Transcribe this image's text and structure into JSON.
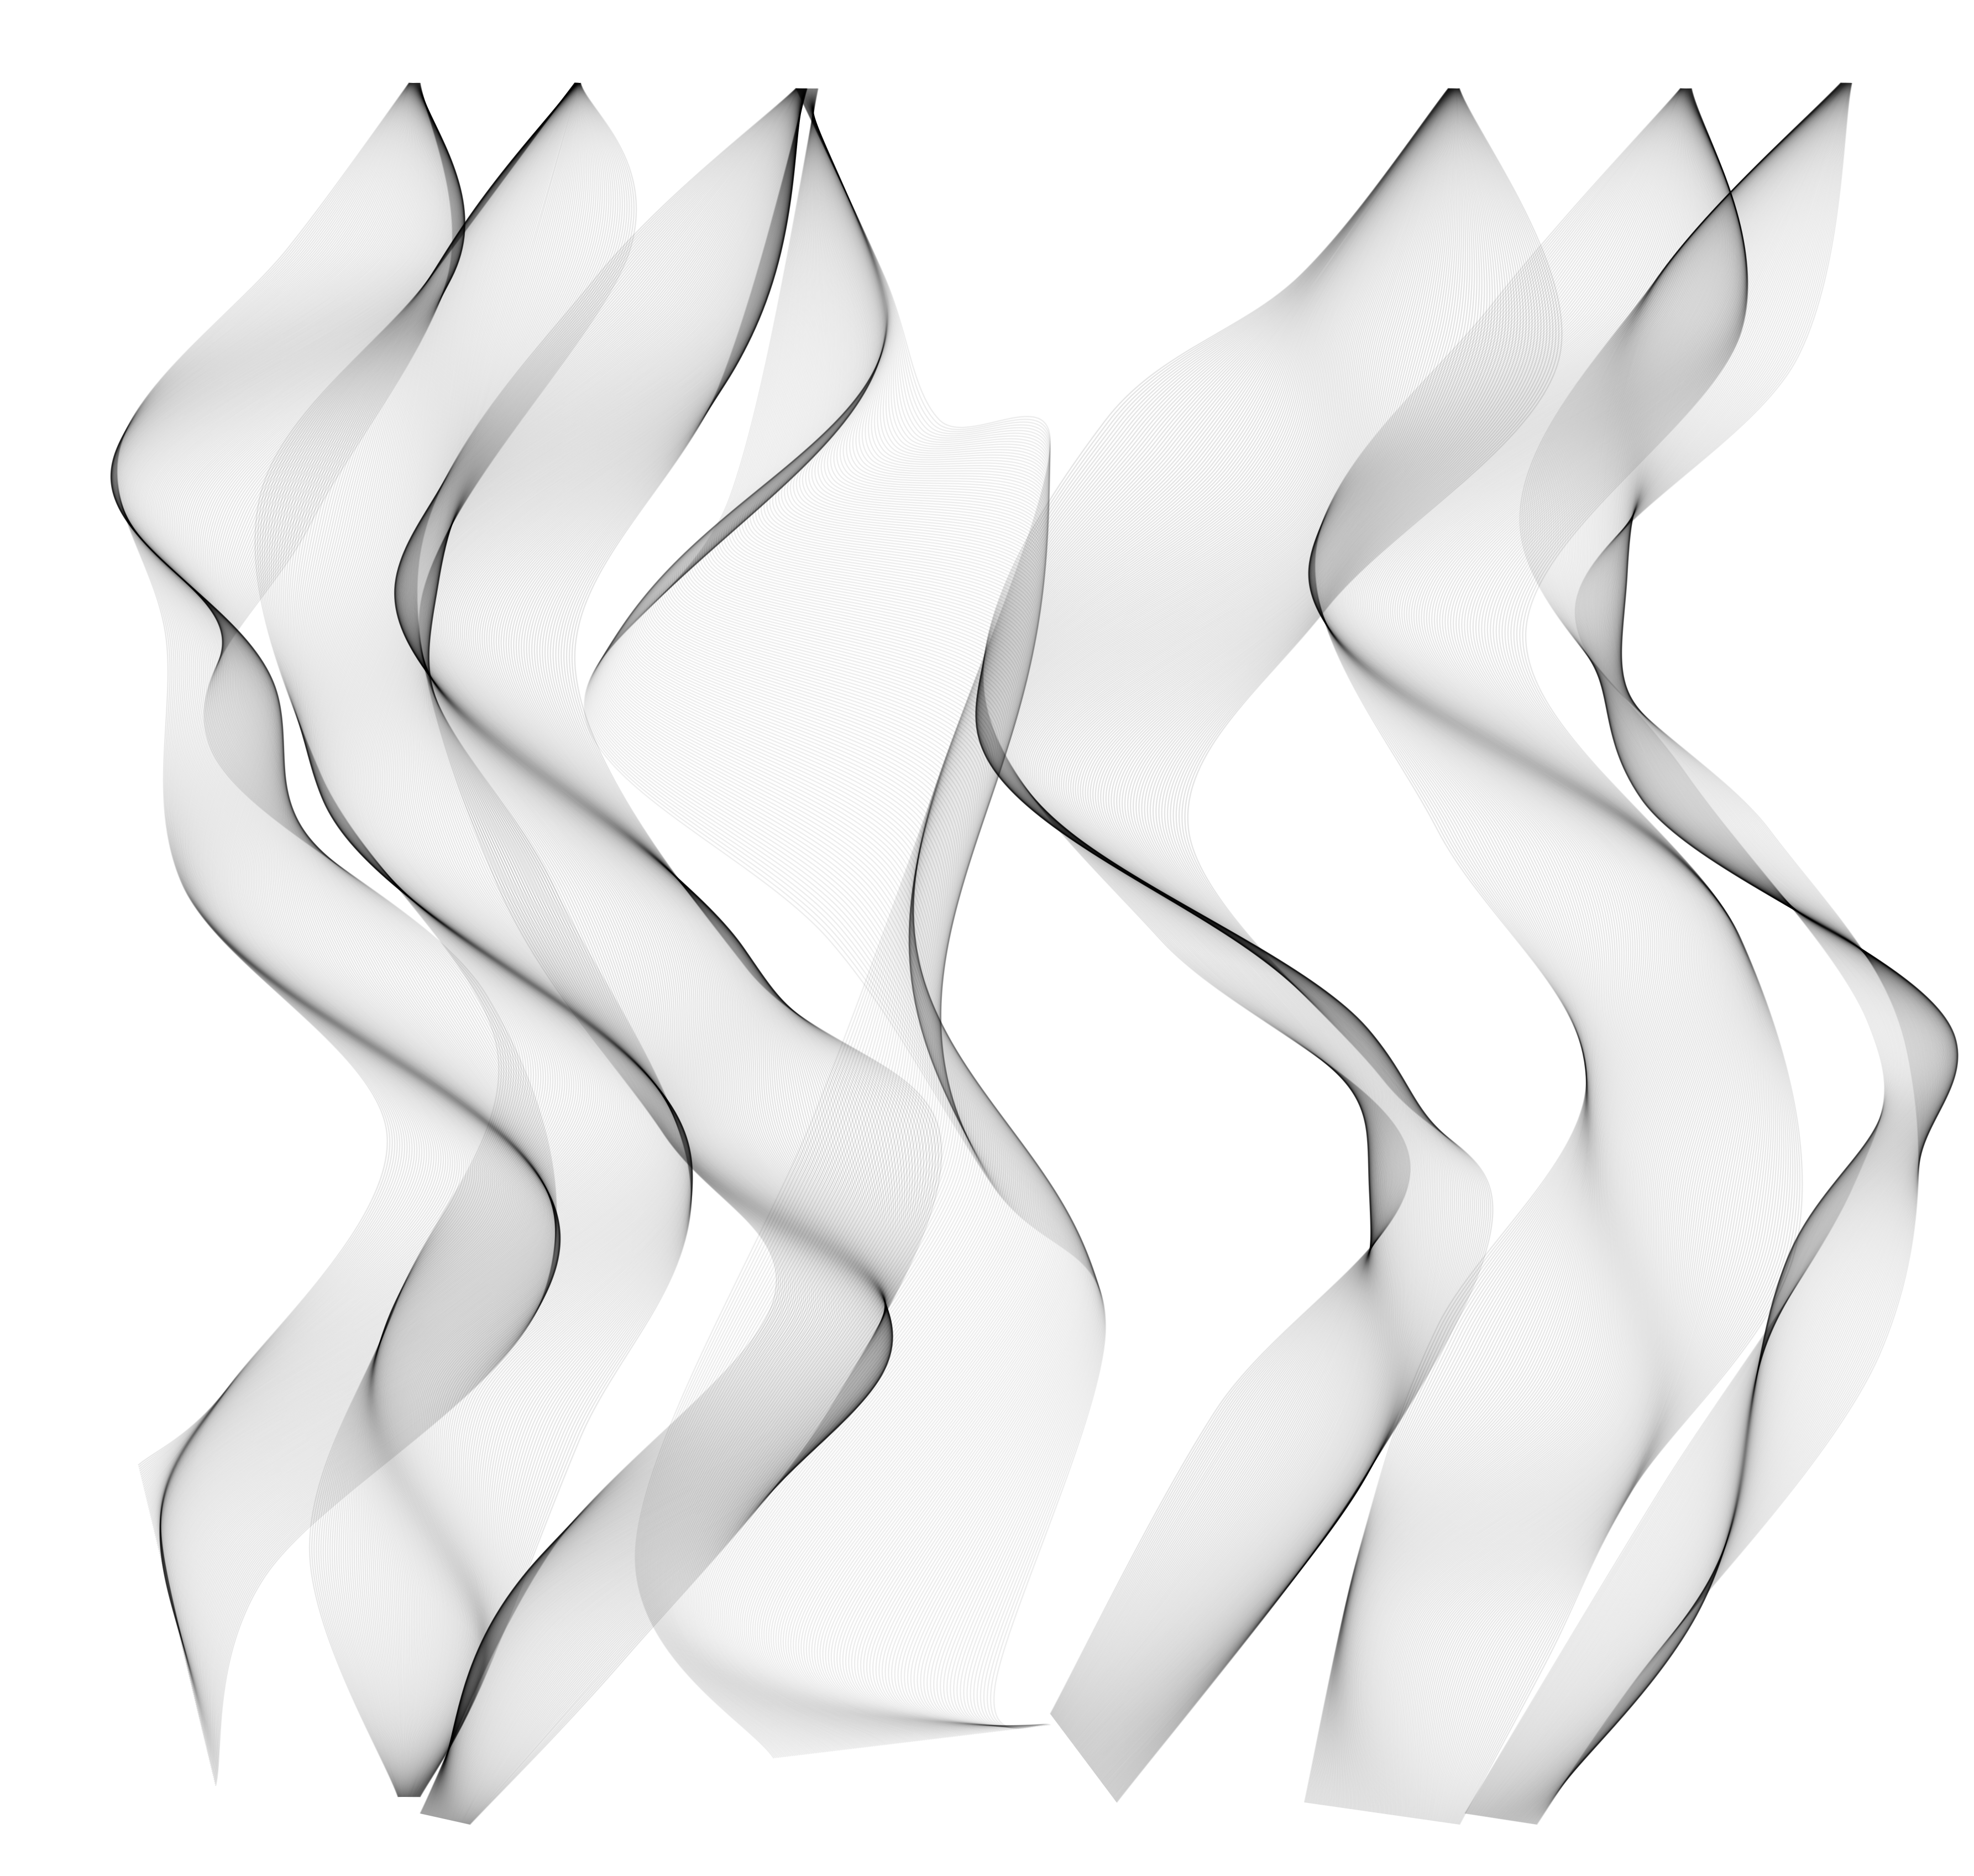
{
  "artwork": {
    "kind": "generative line-art (ribbons of fine strokes)",
    "background_color": "#ffffff",
    "stroke_color": "#000000",
    "ribbon_count": 7,
    "lines_per_ribbon": 160
  }
}
